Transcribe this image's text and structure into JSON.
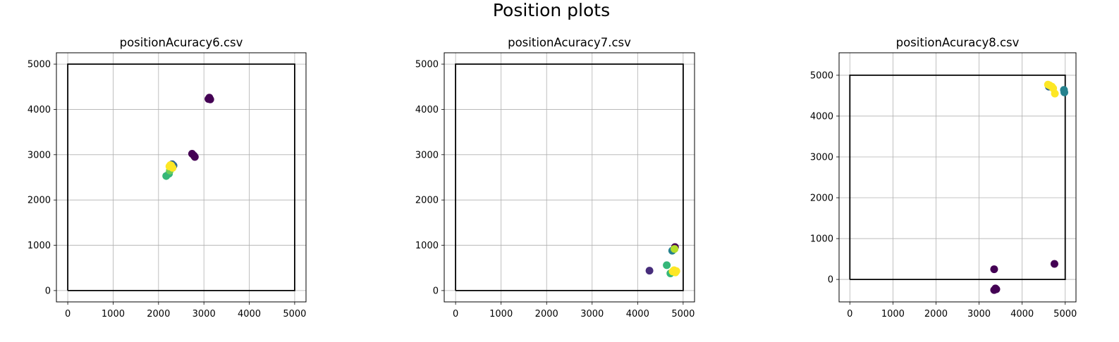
{
  "figure_title": "Position plots",
  "chart_data": [
    {
      "type": "scatter",
      "title": "positionAcuracy6.csv",
      "xlabel": "",
      "ylabel": "",
      "xlim": [
        -250,
        5250
      ],
      "ylim": [
        -250,
        5250
      ],
      "xticks": [
        0,
        1000,
        2000,
        3000,
        4000,
        5000
      ],
      "yticks": [
        0,
        1000,
        2000,
        3000,
        4000,
        5000
      ],
      "grid": true,
      "boundary_square": [
        [
          0,
          0
        ],
        [
          5000,
          0
        ],
        [
          5000,
          5000
        ],
        [
          0,
          5000
        ]
      ],
      "points": [
        {
          "x": 3100,
          "y": 4230,
          "color": "#440154"
        },
        {
          "x": 3140,
          "y": 4220,
          "color": "#440154"
        },
        {
          "x": 3120,
          "y": 4260,
          "color": "#440154"
        },
        {
          "x": 2740,
          "y": 3020,
          "color": "#440154"
        },
        {
          "x": 2780,
          "y": 2980,
          "color": "#440154"
        },
        {
          "x": 2800,
          "y": 2950,
          "color": "#440154"
        },
        {
          "x": 2300,
          "y": 2790,
          "color": "#31688e"
        },
        {
          "x": 2330,
          "y": 2760,
          "color": "#31688e"
        },
        {
          "x": 2260,
          "y": 2700,
          "color": "#26828e"
        },
        {
          "x": 2170,
          "y": 2530,
          "color": "#35b779"
        },
        {
          "x": 2230,
          "y": 2580,
          "color": "#35b779"
        },
        {
          "x": 2250,
          "y": 2650,
          "color": "#6ece58"
        },
        {
          "x": 2240,
          "y": 2740,
          "color": "#fde725"
        },
        {
          "x": 2290,
          "y": 2730,
          "color": "#fde725"
        },
        {
          "x": 2260,
          "y": 2770,
          "color": "#fde725"
        },
        {
          "x": 2310,
          "y": 2710,
          "color": "#fde725"
        },
        {
          "x": 2280,
          "y": 2760,
          "color": "#fde725"
        }
      ]
    },
    {
      "type": "scatter",
      "title": "positionAcuracy7.csv",
      "xlabel": "",
      "ylabel": "",
      "xlim": [
        -250,
        5250
      ],
      "ylim": [
        -250,
        5250
      ],
      "xticks": [
        0,
        1000,
        2000,
        3000,
        4000,
        5000
      ],
      "yticks": [
        0,
        1000,
        2000,
        3000,
        4000,
        5000
      ],
      "grid": true,
      "boundary_square": [
        [
          0,
          0
        ],
        [
          5000,
          0
        ],
        [
          5000,
          5000
        ],
        [
          0,
          5000
        ]
      ],
      "points": [
        {
          "x": 4820,
          "y": 960,
          "color": "#440154"
        },
        {
          "x": 4260,
          "y": 440,
          "color": "#472d7b"
        },
        {
          "x": 4760,
          "y": 880,
          "color": "#26828e"
        },
        {
          "x": 4640,
          "y": 560,
          "color": "#35b779"
        },
        {
          "x": 4720,
          "y": 380,
          "color": "#35b779"
        },
        {
          "x": 4810,
          "y": 920,
          "color": "#b5de2b"
        },
        {
          "x": 4770,
          "y": 420,
          "color": "#fde725"
        },
        {
          "x": 4830,
          "y": 400,
          "color": "#fde725"
        },
        {
          "x": 4800,
          "y": 450,
          "color": "#fde725"
        },
        {
          "x": 4850,
          "y": 430,
          "color": "#fde725"
        }
      ]
    },
    {
      "type": "scatter",
      "title": "positionAcuracy8.csv",
      "xlabel": "",
      "ylabel": "",
      "xlim": [
        -250,
        5250
      ],
      "ylim": [
        -550,
        5550
      ],
      "xticks": [
        0,
        1000,
        2000,
        3000,
        4000,
        5000
      ],
      "yticks": [
        0,
        1000,
        2000,
        3000,
        4000,
        5000
      ],
      "grid": true,
      "boundary_square": [
        [
          0,
          0
        ],
        [
          5000,
          0
        ],
        [
          5000,
          5000
        ],
        [
          0,
          5000
        ]
      ],
      "points": [
        {
          "x": 3350,
          "y": 250,
          "color": "#440154"
        },
        {
          "x": 4750,
          "y": 380,
          "color": "#440154"
        },
        {
          "x": 3380,
          "y": -220,
          "color": "#440154"
        },
        {
          "x": 3350,
          "y": -260,
          "color": "#440154"
        },
        {
          "x": 3400,
          "y": -240,
          "color": "#440154"
        },
        {
          "x": 4970,
          "y": 4640,
          "color": "#26828e"
        },
        {
          "x": 4980,
          "y": 4580,
          "color": "#26828e"
        },
        {
          "x": 4620,
          "y": 4720,
          "color": "#31688e"
        },
        {
          "x": 4760,
          "y": 4550,
          "color": "#fde725"
        },
        {
          "x": 4640,
          "y": 4750,
          "color": "#fde725"
        },
        {
          "x": 4690,
          "y": 4720,
          "color": "#fde725"
        },
        {
          "x": 4600,
          "y": 4770,
          "color": "#fde725"
        },
        {
          "x": 4720,
          "y": 4680,
          "color": "#fde725"
        }
      ]
    }
  ]
}
